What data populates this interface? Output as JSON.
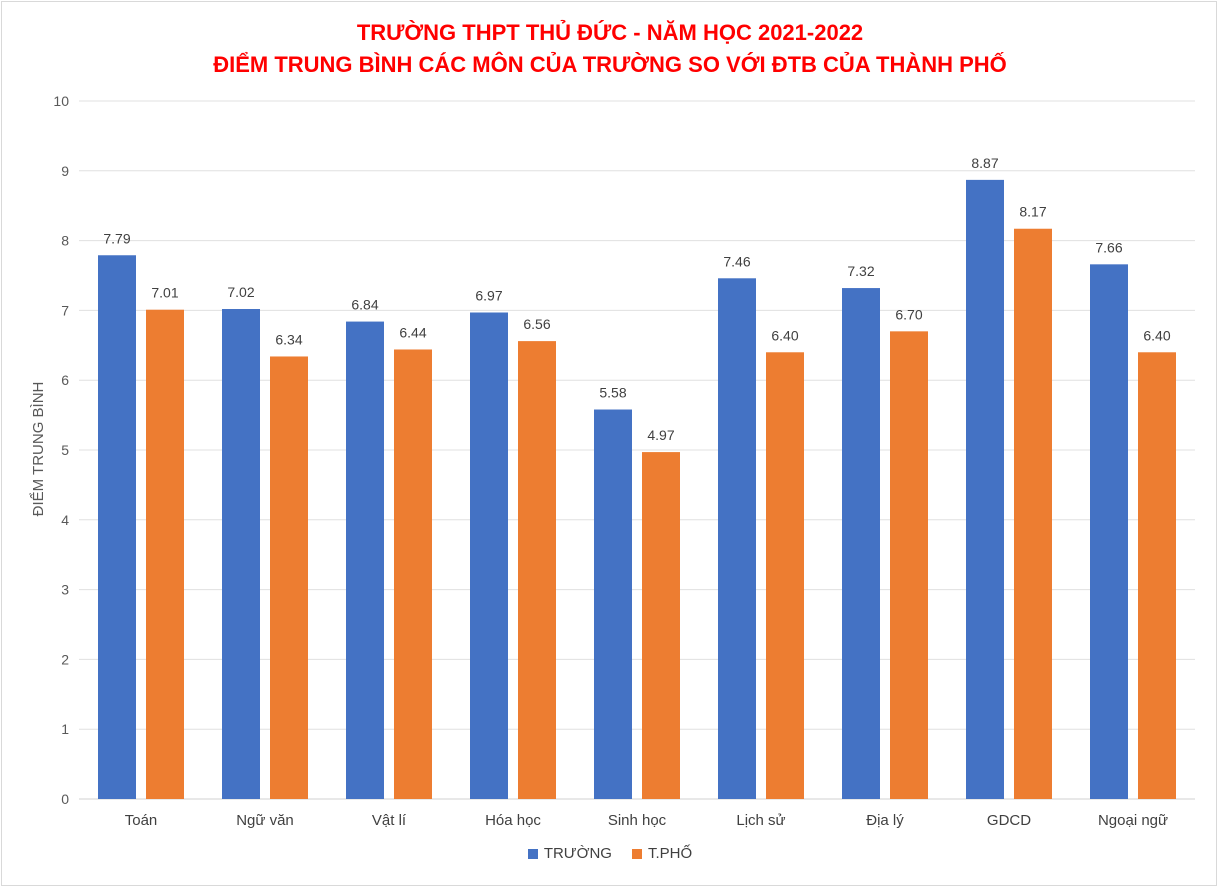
{
  "chart_data": {
    "type": "bar",
    "title": "TRƯỜNG THPT THỦ ĐỨC - NĂM HỌC 2021-2022",
    "subtitle": "ĐIỂM TRUNG BÌNH CÁC MÔN CỦA TRƯỜNG SO VỚI ĐTB CỦA THÀNH PHỐ",
    "xlabel": "",
    "ylabel": "ĐIỂM TRUNG BÌNH",
    "ylim": [
      0,
      10
    ],
    "yticks": [
      "0",
      "1",
      "2",
      "3",
      "4",
      "5",
      "6",
      "7",
      "8",
      "9",
      "10"
    ],
    "grid": true,
    "legend_position": "bottom",
    "categories": [
      "Toán",
      "Ngữ văn",
      "Vật lí",
      "Hóa học",
      "Sinh học",
      "Lịch sử",
      "Địa lý",
      "GDCD",
      "Ngoại ngữ"
    ],
    "series": [
      {
        "name": "TRƯỜNG",
        "color": "#4472c4",
        "values": [
          7.79,
          7.02,
          6.84,
          6.97,
          5.58,
          7.46,
          7.32,
          8.87,
          7.66
        ],
        "labels": [
          "7.79",
          "7.02",
          "6.84",
          "6.97",
          "5.58",
          "7.46",
          "7.32",
          "8.87",
          "7.66"
        ]
      },
      {
        "name": "T.PHỐ",
        "color": "#ed7d31",
        "values": [
          7.01,
          6.34,
          6.44,
          6.56,
          4.97,
          6.4,
          6.7,
          8.17,
          6.4
        ],
        "labels": [
          "7.01",
          "6.34",
          "6.44",
          "6.56",
          "4.97",
          "6.40",
          "6.70",
          "8.17",
          "6.40"
        ]
      }
    ]
  }
}
